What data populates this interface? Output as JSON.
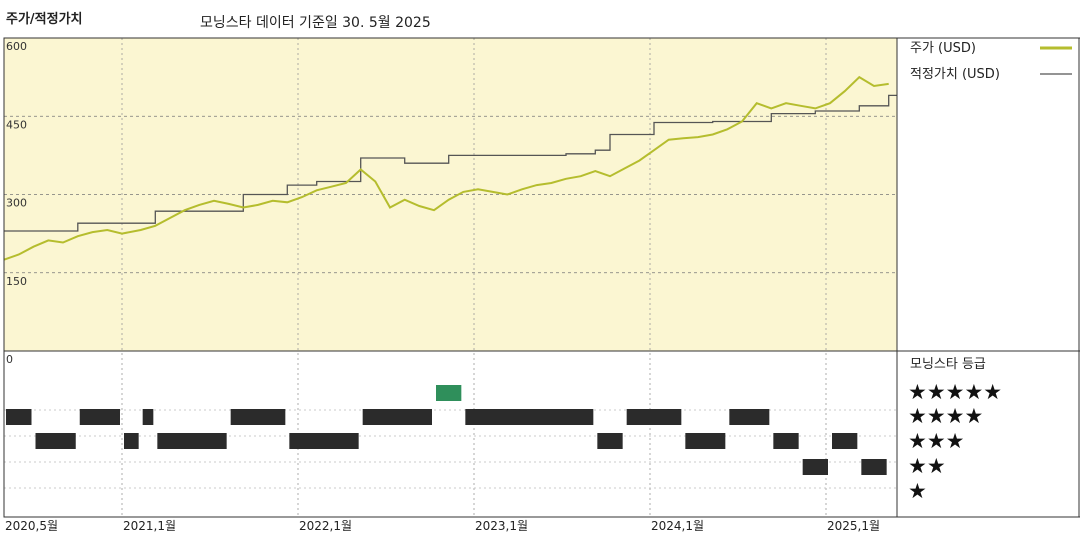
{
  "header": {
    "title": "주가/적정가치",
    "subtitle": "모닝스타 데이터 기준일 30. 5월 2025"
  },
  "legend": {
    "price": "주가 (USD)",
    "fair_value": "적정가치 (USD)",
    "rating_title": "모닝스타 등급"
  },
  "colors": {
    "price_line": "#b5bd2e",
    "fair_value_line": "#555555",
    "panel_bg": "#fbf6d2",
    "rating_bar": "#2b2b2b",
    "rating_top": "#2f8f5b"
  },
  "chart_data": {
    "type": "line",
    "ylim": [
      0,
      600
    ],
    "yticks": [
      "600",
      "450",
      "300",
      "150",
      "0"
    ],
    "xticks": [
      "2020,5월",
      "2021,1월",
      "2022,1월",
      "2023,1월",
      "2024,1월",
      "2025,1월"
    ],
    "series": [
      {
        "name": "주가 (USD)",
        "points": [
          [
            "2020-05",
            175
          ],
          [
            "2020-06",
            185
          ],
          [
            "2020-07",
            200
          ],
          [
            "2020-08",
            212
          ],
          [
            "2020-09",
            208
          ],
          [
            "2020-10",
            220
          ],
          [
            "2020-11",
            228
          ],
          [
            "2020-12",
            232
          ],
          [
            "2021-01",
            225
          ],
          [
            "2021-02",
            232
          ],
          [
            "2021-03",
            240
          ],
          [
            "2021-04",
            255
          ],
          [
            "2021-05",
            270
          ],
          [
            "2021-06",
            280
          ],
          [
            "2021-07",
            288
          ],
          [
            "2021-08",
            282
          ],
          [
            "2021-09",
            275
          ],
          [
            "2021-10",
            280
          ],
          [
            "2021-11",
            288
          ],
          [
            "2021-12",
            285
          ],
          [
            "2022-01",
            295
          ],
          [
            "2022-02",
            308
          ],
          [
            "2022-03",
            315
          ],
          [
            "2022-04",
            322
          ],
          [
            "2022-05",
            348
          ],
          [
            "2022-06",
            325
          ],
          [
            "2022-07",
            275
          ],
          [
            "2022-08",
            290
          ],
          [
            "2022-09",
            278
          ],
          [
            "2022-10",
            270
          ],
          [
            "2022-11",
            290
          ],
          [
            "2022-12",
            305
          ],
          [
            "2023-01",
            310
          ],
          [
            "2023-02",
            305
          ],
          [
            "2023-03",
            300
          ],
          [
            "2023-04",
            310
          ],
          [
            "2023-05",
            318
          ],
          [
            "2023-06",
            322
          ],
          [
            "2023-07",
            330
          ],
          [
            "2023-08",
            335
          ],
          [
            "2023-09",
            345
          ],
          [
            "2023-10",
            335
          ],
          [
            "2023-11",
            350
          ],
          [
            "2023-12",
            365
          ],
          [
            "2024-01",
            385
          ],
          [
            "2024-02",
            405
          ],
          [
            "2024-03",
            408
          ],
          [
            "2024-04",
            410
          ],
          [
            "2024-05",
            415
          ],
          [
            "2024-06",
            425
          ],
          [
            "2024-07",
            440
          ],
          [
            "2024-08",
            475
          ],
          [
            "2024-09",
            465
          ],
          [
            "2024-10",
            475
          ],
          [
            "2024-11",
            470
          ],
          [
            "2024-12",
            465
          ],
          [
            "2025-01",
            475
          ],
          [
            "2025-02",
            498
          ],
          [
            "2025-03",
            525
          ],
          [
            "2025-04",
            508
          ],
          [
            "2025-05",
            512
          ]
        ]
      },
      {
        "name": "적정가치 (USD)",
        "steps": [
          [
            "2020-05",
            230
          ],
          [
            "2020-10",
            245
          ],
          [
            "2021-03",
            268
          ],
          [
            "2021-09",
            300
          ],
          [
            "2021-12",
            318
          ],
          [
            "2022-02",
            325
          ],
          [
            "2022-05",
            370
          ],
          [
            "2022-08",
            360
          ],
          [
            "2022-11",
            375
          ],
          [
            "2023-07",
            378
          ],
          [
            "2023-09",
            385
          ],
          [
            "2023-10",
            415
          ],
          [
            "2024-01",
            438
          ],
          [
            "2024-05",
            440
          ],
          [
            "2024-09",
            455
          ],
          [
            "2024-12",
            460
          ],
          [
            "2025-03",
            470
          ],
          [
            "2025-05",
            490
          ]
        ]
      }
    ],
    "rating": {
      "levels": [
        "★★★★★",
        "★★★★",
        "★★★",
        "★★",
        "★"
      ],
      "segments": [
        [
          "2020-05",
          "2020-07",
          4
        ],
        [
          "2020-07",
          "2020-10",
          3
        ],
        [
          "2020-10",
          "2021-01",
          4
        ],
        [
          "2021-01",
          "2021-02",
          3
        ],
        [
          "2021-02",
          "2021-03",
          4
        ],
        [
          "2021-03",
          "2021-08",
          3
        ],
        [
          "2021-08",
          "2021-12",
          4
        ],
        [
          "2021-12",
          "2022-05",
          3
        ],
        [
          "2022-05",
          "2022-10",
          4
        ],
        [
          "2022-10",
          "2022-12",
          5
        ],
        [
          "2022-12",
          "2023-09",
          4
        ],
        [
          "2023-09",
          "2023-11",
          3
        ],
        [
          "2023-11",
          "2024-03",
          4
        ],
        [
          "2024-03",
          "2024-06",
          3
        ],
        [
          "2024-06",
          "2024-09",
          4
        ],
        [
          "2024-09",
          "2024-11",
          3
        ],
        [
          "2024-11",
          "2025-01",
          2
        ],
        [
          "2025-01",
          "2025-03",
          3
        ],
        [
          "2025-03",
          "2025-05",
          2
        ]
      ]
    }
  }
}
